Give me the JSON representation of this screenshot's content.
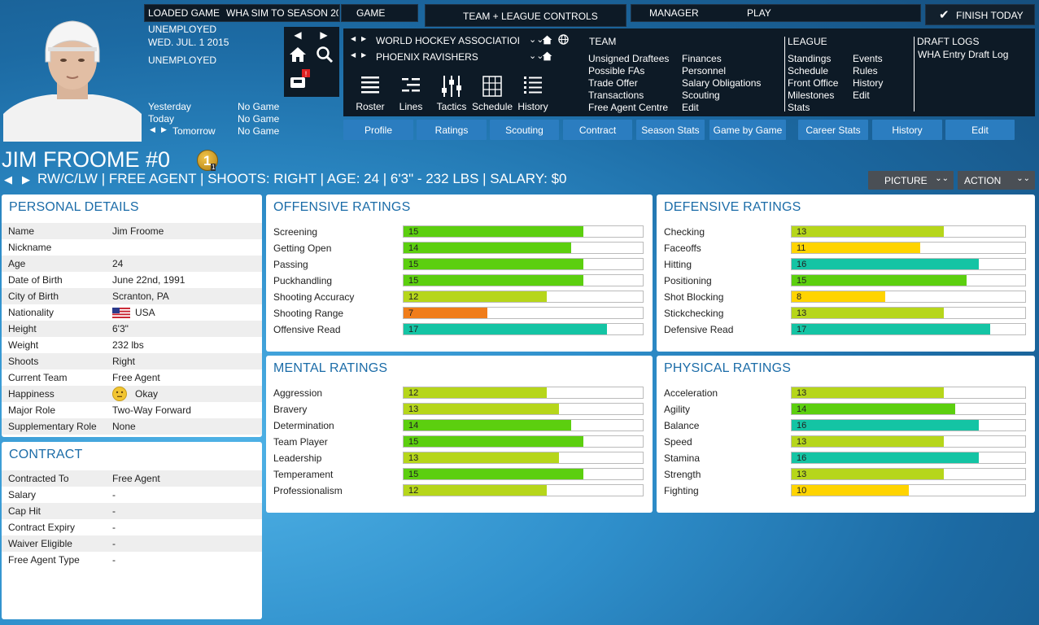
{
  "header": {
    "loaded_game": "LOADED GAME",
    "game_name": "WHA SIM TO SEASON 20",
    "game_menu": "GAME",
    "team_league_controls": "TEAM + LEAGUE CONTROLS",
    "manager_menu": "MANAGER",
    "play_menu": "PLAY",
    "finish_today": "FINISH TODAY",
    "status1": "UNEMPLOYED",
    "date": "WED. JUL. 1 2015",
    "status2": "UNEMPLOYED"
  },
  "schedule": {
    "yesterday_label": "Yesterday",
    "yesterday_val": "No Game",
    "today_label": "Today",
    "today_val": "No Game",
    "tomorrow_label": "Tomorrow",
    "tomorrow_val": "No Game"
  },
  "league_select": {
    "league": "WORLD HOCKEY ASSOCIATIOI",
    "team": "PHOENIX RAVISHERS"
  },
  "toolbar": {
    "roster": "Roster",
    "lines": "Lines",
    "tactics": "Tactics",
    "schedule": "Schedule",
    "history": "History"
  },
  "team_menu": {
    "title": "TEAM",
    "col1": [
      "Unsigned Draftees",
      "Possible FAs",
      "Trade Offer",
      "Transactions",
      "Free Agent Centre"
    ],
    "col2": [
      "Finances",
      "Personnel",
      "Salary Obligations",
      "Scouting",
      "Edit"
    ]
  },
  "league_menu": {
    "title": "LEAGUE",
    "col1": [
      "Standings",
      "Schedule",
      "Front Office",
      "Milestones",
      "Stats"
    ],
    "col2": [
      "Events",
      "Rules",
      "History",
      "Edit"
    ]
  },
  "draft_menu": {
    "title": "DRAFT LOGS",
    "items": [
      "WHA Entry Draft Log"
    ]
  },
  "tabs": [
    "Profile",
    "Ratings",
    "Scouting",
    "Contract",
    "Season Stats",
    "Game by Game",
    "Career Stats",
    "History",
    "Edit"
  ],
  "player": {
    "title": "JIM FROOME #0",
    "badge": "1",
    "badge_sub": "1",
    "subtitle": "RW/C/LW | FREE AGENT | SHOOTS: RIGHT | AGE: 24 | 6'3\" - 232 LBS | SALARY: $0"
  },
  "actions": {
    "picture": "PICTURE",
    "action": "ACTION"
  },
  "personal": {
    "title": "PERSONAL DETAILS",
    "rows": [
      {
        "label": "Name",
        "value": "Jim Froome"
      },
      {
        "label": "Nickname",
        "value": ""
      },
      {
        "label": "Age",
        "value": "24"
      },
      {
        "label": "Date of Birth",
        "value": "June 22nd, 1991"
      },
      {
        "label": "City of Birth",
        "value": "Scranton, PA"
      },
      {
        "label": "Nationality",
        "value": "USA"
      },
      {
        "label": "Height",
        "value": "6'3\""
      },
      {
        "label": "Weight",
        "value": "232 lbs"
      },
      {
        "label": "Shoots",
        "value": "Right"
      },
      {
        "label": "Current Team",
        "value": "Free Agent"
      },
      {
        "label": "Happiness",
        "value": "Okay"
      },
      {
        "label": "Major Role",
        "value": "Two-Way Forward"
      },
      {
        "label": "Supplementary Role",
        "value": "None"
      }
    ]
  },
  "contract": {
    "title": "CONTRACT",
    "rows": [
      {
        "label": "Contracted To",
        "value": "Free Agent"
      },
      {
        "label": "Salary",
        "value": "-"
      },
      {
        "label": "Cap Hit",
        "value": "-"
      },
      {
        "label": "Contract Expiry",
        "value": "-"
      },
      {
        "label": "Waiver Eligible",
        "value": "-"
      },
      {
        "label": "Free Agent Type",
        "value": "-"
      }
    ]
  },
  "ratings_max": 20,
  "rating_colors": {
    "low": "#f07d1a",
    "mid": "#ffd400",
    "good": "#b6d61b",
    "high": "#5ccf0f",
    "elite": "#14c4a4"
  },
  "offensive": {
    "title": "OFFENSIVE RATINGS",
    "items": [
      {
        "label": "Screening",
        "value": 15
      },
      {
        "label": "Getting Open",
        "value": 14
      },
      {
        "label": "Passing",
        "value": 15
      },
      {
        "label": "Puckhandling",
        "value": 15
      },
      {
        "label": "Shooting Accuracy",
        "value": 12
      },
      {
        "label": "Shooting Range",
        "value": 7
      },
      {
        "label": "Offensive Read",
        "value": 17
      }
    ]
  },
  "defensive": {
    "title": "DEFENSIVE RATINGS",
    "items": [
      {
        "label": "Checking",
        "value": 13
      },
      {
        "label": "Faceoffs",
        "value": 11
      },
      {
        "label": "Hitting",
        "value": 16
      },
      {
        "label": "Positioning",
        "value": 15
      },
      {
        "label": "Shot Blocking",
        "value": 8
      },
      {
        "label": "Stickchecking",
        "value": 13
      },
      {
        "label": "Defensive Read",
        "value": 17
      }
    ]
  },
  "mental": {
    "title": "MENTAL RATINGS",
    "items": [
      {
        "label": "Aggression",
        "value": 12
      },
      {
        "label": "Bravery",
        "value": 13
      },
      {
        "label": "Determination",
        "value": 14
      },
      {
        "label": "Team Player",
        "value": 15
      },
      {
        "label": "Leadership",
        "value": 13
      },
      {
        "label": "Temperament",
        "value": 15
      },
      {
        "label": "Professionalism",
        "value": 12
      }
    ]
  },
  "physical": {
    "title": "PHYSICAL RATINGS",
    "items": [
      {
        "label": "Acceleration",
        "value": 13
      },
      {
        "label": "Agility",
        "value": 14
      },
      {
        "label": "Balance",
        "value": 16
      },
      {
        "label": "Speed",
        "value": 13
      },
      {
        "label": "Stamina",
        "value": 16
      },
      {
        "label": "Strength",
        "value": 13
      },
      {
        "label": "Fighting",
        "value": 10
      }
    ]
  }
}
